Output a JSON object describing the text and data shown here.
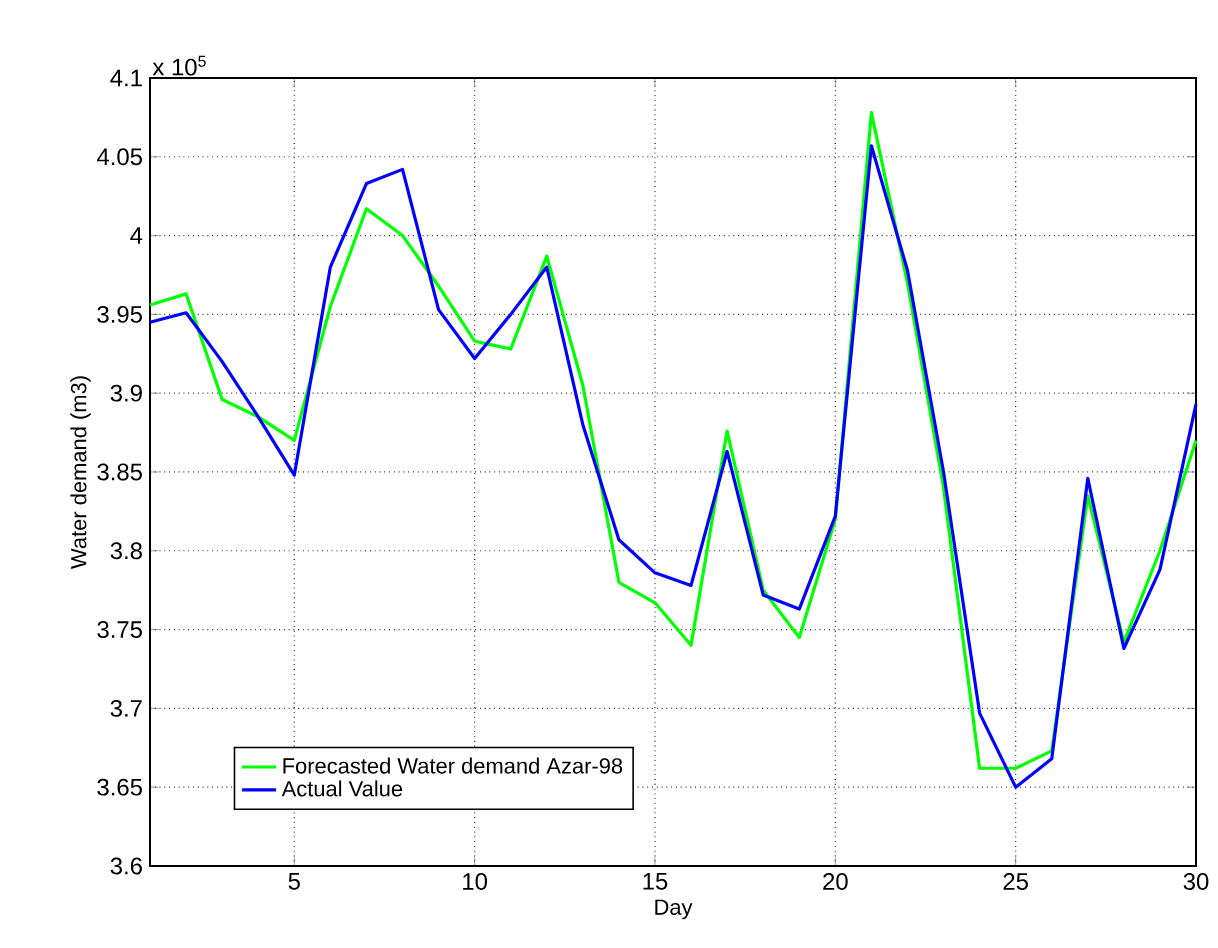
{
  "chart_data": {
    "type": "line",
    "xlabel": "Day",
    "ylabel": "Water demand (m3)",
    "x": [
      1,
      2,
      3,
      4,
      5,
      6,
      7,
      8,
      9,
      10,
      11,
      12,
      13,
      14,
      15,
      16,
      17,
      18,
      19,
      20,
      21,
      22,
      23,
      24,
      25,
      26,
      27,
      28,
      29,
      30
    ],
    "series": [
      {
        "name": "Forecasted Water demand Azar-98",
        "color": "#00ff00",
        "values": [
          3.956,
          3.963,
          3.896,
          3.885,
          3.87,
          3.955,
          4.017,
          4.0,
          3.968,
          3.933,
          3.928,
          3.987,
          3.905,
          3.78,
          3.767,
          3.74,
          3.876,
          3.775,
          3.745,
          3.82,
          4.078,
          3.97,
          3.84,
          3.662,
          3.662,
          3.673,
          3.835,
          3.742,
          3.8,
          3.87
        ]
      },
      {
        "name": "Actual Value",
        "color": "#0000ff",
        "values": [
          3.945,
          3.951,
          3.92,
          3.885,
          3.848,
          3.98,
          4.033,
          4.042,
          3.953,
          3.922,
          3.95,
          3.98,
          3.88,
          3.807,
          3.786,
          3.778,
          3.863,
          3.772,
          3.763,
          3.822,
          4.057,
          3.978,
          3.85,
          3.697,
          3.65,
          3.668,
          3.846,
          3.738,
          3.788,
          3.893
        ]
      }
    ],
    "xlim": [
      1,
      30
    ],
    "xticks": [
      5,
      10,
      15,
      20,
      25,
      30
    ],
    "ylim": [
      3.6,
      4.1
    ],
    "yticks": [
      3.6,
      3.65,
      3.7,
      3.75,
      3.8,
      3.85,
      3.9,
      3.95,
      4,
      4.05,
      4.1
    ],
    "annotations": [
      "x 10$^{5}$"
    ],
    "grid": true,
    "legend": "bottom left",
    "line_style": "solid",
    "marker": "none"
  }
}
